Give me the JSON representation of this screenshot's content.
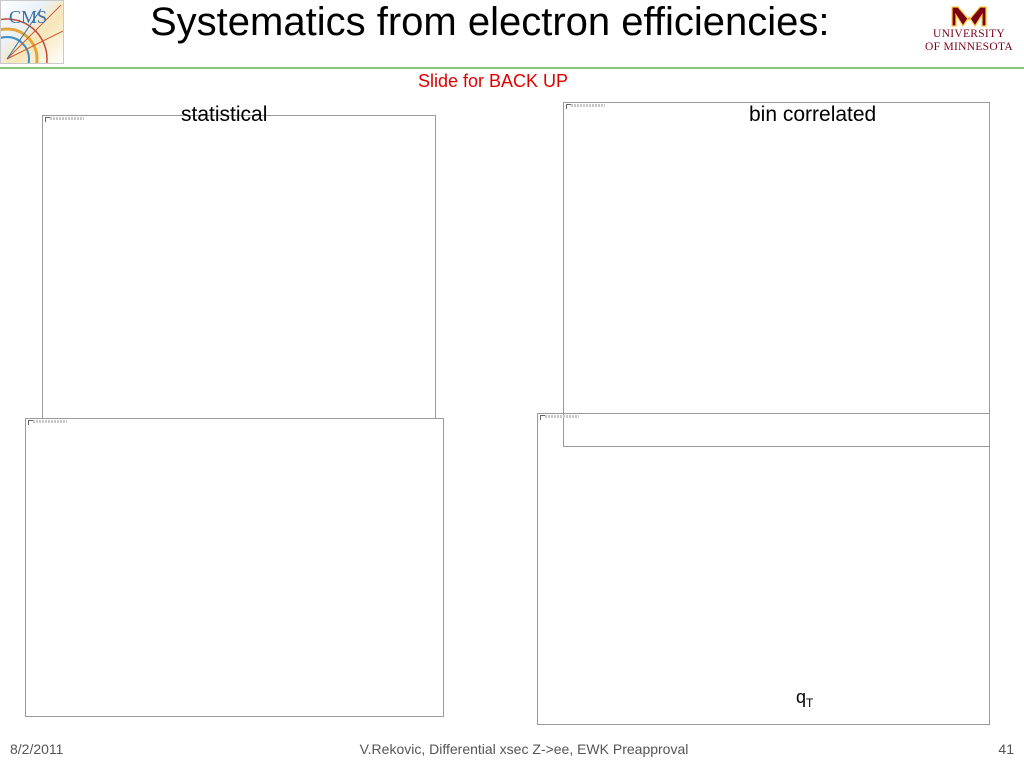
{
  "header": {
    "title": "Systematics from electron efficiencies:",
    "subtitle": "Slide for BACK UP",
    "logo_left_text": "CMS",
    "logo_right_line1": "UNIVERSITY",
    "logo_right_line2": "OF MINNESOTA"
  },
  "panels": {
    "left_label": "statistical",
    "right_label": "bin correlated",
    "bottom_right_axis_label": "q",
    "bottom_right_axis_subscript": "T"
  },
  "footer": {
    "date": "8/2/2011",
    "center": "V.Rekovic, Differential xsec Z->ee, EWK Preapproval",
    "page": "41"
  },
  "colors": {
    "title_rule": "#8fc37a",
    "subtitle": "#e00000",
    "umn_maroon": "#7a0019",
    "umn_gold": "#ffcc33"
  }
}
